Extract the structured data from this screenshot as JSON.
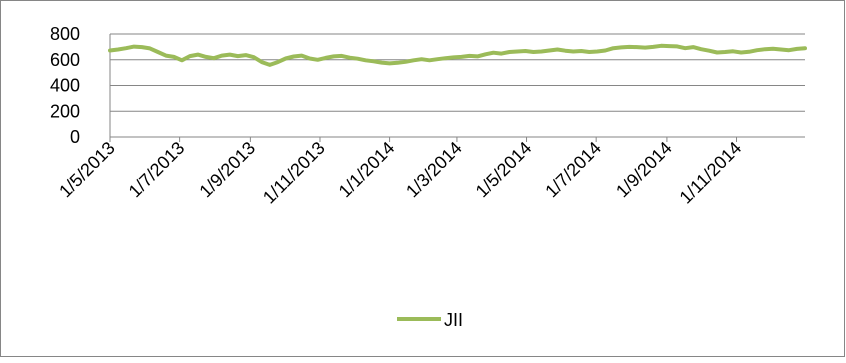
{
  "chart_data": {
    "type": "line",
    "title": "",
    "xlabel": "",
    "ylabel": "",
    "ylim": [
      0,
      800
    ],
    "yticks": [
      "0",
      "200",
      "400",
      "600",
      "800"
    ],
    "xlim": [
      "2013-05-01",
      "2014-12-31"
    ],
    "xtick_labels": [
      "1/5/2013",
      "1/7/2013",
      "1/9/2013",
      "1/11/2013",
      "1/1/2014",
      "1/3/2014",
      "1/5/2014",
      "1/7/2014",
      "1/9/2014",
      "1/11/2014"
    ],
    "xtick_dates": [
      "2013-05-01",
      "2013-07-01",
      "2013-09-01",
      "2013-11-01",
      "2014-01-01",
      "2014-03-01",
      "2014-05-01",
      "2014-07-01",
      "2014-09-01",
      "2014-11-01"
    ],
    "grid": true,
    "legend_position": "bottom",
    "series": [
      {
        "name": "JII",
        "color": "#9bbb59",
        "x": [
          "2013-05-01",
          "2013-05-08",
          "2013-05-15",
          "2013-05-22",
          "2013-05-29",
          "2013-06-05",
          "2013-06-12",
          "2013-06-19",
          "2013-06-26",
          "2013-07-03",
          "2013-07-10",
          "2013-07-17",
          "2013-07-24",
          "2013-07-31",
          "2013-08-07",
          "2013-08-14",
          "2013-08-21",
          "2013-08-28",
          "2013-09-04",
          "2013-09-11",
          "2013-09-18",
          "2013-09-25",
          "2013-10-02",
          "2013-10-09",
          "2013-10-16",
          "2013-10-23",
          "2013-10-30",
          "2013-11-06",
          "2013-11-13",
          "2013-11-20",
          "2013-11-27",
          "2013-12-04",
          "2013-12-11",
          "2013-12-18",
          "2013-12-25",
          "2014-01-01",
          "2014-01-08",
          "2014-01-15",
          "2014-01-22",
          "2014-01-29",
          "2014-02-05",
          "2014-02-12",
          "2014-02-19",
          "2014-02-26",
          "2014-03-05",
          "2014-03-12",
          "2014-03-19",
          "2014-03-26",
          "2014-04-02",
          "2014-04-09",
          "2014-04-16",
          "2014-04-23",
          "2014-04-30",
          "2014-05-07",
          "2014-05-14",
          "2014-05-21",
          "2014-05-28",
          "2014-06-04",
          "2014-06-11",
          "2014-06-18",
          "2014-06-25",
          "2014-07-02",
          "2014-07-09",
          "2014-07-16",
          "2014-07-23",
          "2014-07-30",
          "2014-08-06",
          "2014-08-13",
          "2014-08-20",
          "2014-08-27",
          "2014-09-03",
          "2014-09-10",
          "2014-09-17",
          "2014-09-24",
          "2014-10-01",
          "2014-10-08",
          "2014-10-15",
          "2014-10-22",
          "2014-10-29",
          "2014-11-05",
          "2014-11-12",
          "2014-11-19",
          "2014-11-26",
          "2014-12-03",
          "2014-12-10",
          "2014-12-17",
          "2014-12-24",
          "2014-12-31"
        ],
        "values": [
          672,
          680,
          690,
          702,
          698,
          688,
          660,
          632,
          622,
          596,
          628,
          640,
          622,
          612,
          632,
          640,
          628,
          636,
          620,
          582,
          560,
          582,
          610,
          625,
          632,
          610,
          600,
          614,
          626,
          630,
          616,
          608,
          596,
          588,
          578,
          572,
          576,
          584,
          596,
          604,
          596,
          604,
          612,
          618,
          622,
          630,
          626,
          642,
          655,
          648,
          660,
          664,
          668,
          660,
          664,
          672,
          680,
          670,
          664,
          668,
          660,
          664,
          672,
          690,
          696,
          700,
          698,
          694,
          700,
          708,
          706,
          704,
          690,
          698,
          682,
          670,
          656,
          660,
          666,
          656,
          662,
          674,
          682,
          686,
          680,
          674,
          684,
          690
        ]
      }
    ]
  }
}
